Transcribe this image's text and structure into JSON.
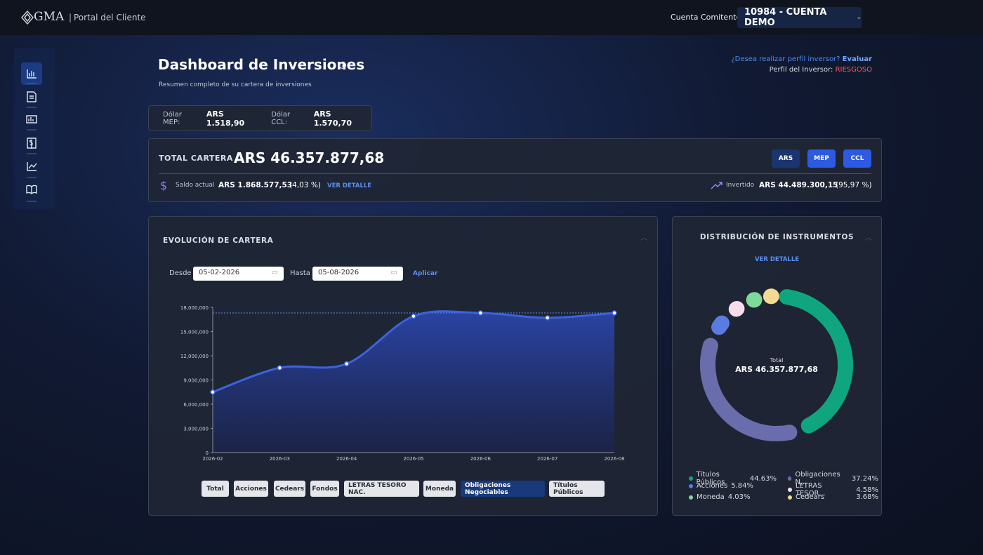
{
  "header": {
    "logo": "GMA",
    "portal": "Portal del Cliente",
    "account_label": "Cuenta Comitente:",
    "account": "10984 - CUENTA DEMO"
  },
  "page": {
    "title": "Dashboard de Inversiones",
    "subtitle": "Resumen completo de su cartera de inversiones",
    "profile_question": "¿Desea realizar perfil inversor?",
    "profile_link": "Evaluar",
    "profile_label": "Perfil del Inversor:",
    "profile_value": "RIESGOSO"
  },
  "rates": [
    {
      "label": "Dólar MEP:",
      "value": "ARS 1.518,90"
    },
    {
      "label": "Dólar CCL:",
      "value": "ARS 1.570,70"
    }
  ],
  "total": {
    "label": "TOTAL CARTERA",
    "value": "ARS 46.357.877,68",
    "currencies": [
      "ARS",
      "MEP",
      "CCL"
    ],
    "saldo_label": "Saldo actual",
    "saldo_value": "ARS 1.868.577,53",
    "saldo_pct": "(4,03 %)",
    "detail": "VER DETALLE",
    "invested_label": "Invertido",
    "invested_value": "ARS 44.489.300,15",
    "invested_pct": "(95,97 %)"
  },
  "evolution": {
    "title": "EVOLUCIÓN DE CARTERA",
    "from_label": "Desde",
    "from": "05-02-2026",
    "to_label": "Hasta",
    "to": "05-08-2026",
    "apply": "Aplicar",
    "chart": {
      "type": "line",
      "categories": [
        "2026-02",
        "2026-03",
        "2026-04",
        "2026-05",
        "2026-06",
        "2026-07",
        "2026-08"
      ],
      "values": [
        7500000,
        10500000,
        11000000,
        16900000,
        17300000,
        16700000,
        17300000
      ],
      "color": "#3b63e0",
      "ylim": [
        0,
        18000000
      ],
      "yticks": [
        0,
        {
          "value": 3000000,
          "label": "3,000,000"
        },
        {
          "value": 6000000,
          "label": "6,000,000"
        },
        {
          "value": 9000000,
          "label": "9,000,000"
        },
        {
          "value": 12000000,
          "label": "12,000,000"
        },
        {
          "value": 15000000,
          "label": "15,000,000"
        },
        {
          "value": 18000000,
          "label": "18,000,000"
        }
      ]
    },
    "filters": [
      "Total",
      "Acciones",
      "Cedears",
      "Fondos",
      "LETRAS TESORO NAC.",
      "Moneda",
      "Obligaciones Negociables",
      "Títulos Públicos"
    ],
    "active_filter": "Obligaciones Negociables"
  },
  "distribution": {
    "title": "DISTRIBUCIÓN DE INSTRUMENTOS",
    "detail": "VER DETALLE",
    "center_label": "Total",
    "center_value": "ARS 46.357.877,68",
    "chart": {
      "type": "pie",
      "categories": [
        "Títulos Públicos",
        "Obligaciones N...",
        "Acciones",
        "LETRAS TESOR...",
        "Moneda",
        "Cedears"
      ],
      "values": [
        44.63,
        37.24,
        5.84,
        4.58,
        4.03,
        3.68
      ],
      "value_labels": [
        "44.63%",
        "37.24%",
        "5.84%",
        "4.58%",
        "4.03%",
        "3.68%"
      ],
      "colors": [
        "#0fa67f",
        "#6a6dab",
        "#5a7be0",
        "#f6dde8",
        "#7fd99a",
        "#f3da92"
      ]
    }
  }
}
